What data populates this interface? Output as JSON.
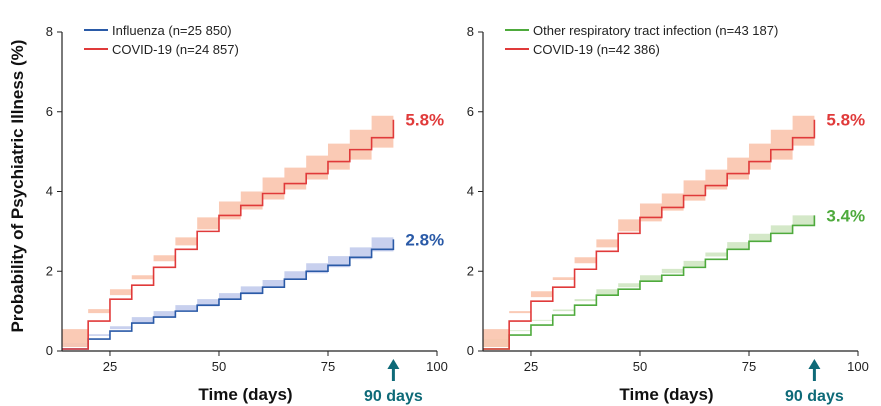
{
  "y_axis_label": "Probability of Psychiatric Illness (%)",
  "colors": {
    "covid": "#e03a3a",
    "covid_band": "#f9c4ad",
    "influenza": "#2a5aa7",
    "influenza_band": "#c2cbec",
    "resp": "#4eaa3c",
    "resp_band": "#cfe6c2",
    "marker": "#0e6a78"
  },
  "chart_data": [
    {
      "type": "line",
      "xlabel": "Time (days)",
      "ylabel": "Probability of Psychiatric Illness (%)",
      "xlim": [
        14,
        100
      ],
      "ylim": [
        0,
        8
      ],
      "x_ticks": [
        25,
        50,
        75,
        100
      ],
      "y_ticks": [
        0,
        2,
        4,
        6,
        8
      ],
      "grid": false,
      "legend": "top-left",
      "marker_label": "90 days",
      "marker_x": 90,
      "series": [
        {
          "name": "Influenza (n=25 850)",
          "color_key": "influenza",
          "end_label": "2.8%",
          "x": [
            14,
            20,
            25,
            30,
            35,
            40,
            45,
            50,
            55,
            60,
            65,
            70,
            75,
            80,
            85,
            90
          ],
          "y": [
            0.05,
            0.3,
            0.5,
            0.7,
            0.85,
            1.0,
            1.15,
            1.3,
            1.45,
            1.6,
            1.8,
            2.0,
            2.15,
            2.35,
            2.55,
            2.8
          ],
          "lower": [
            0.02,
            0.2,
            0.38,
            0.55,
            0.7,
            0.85,
            1.0,
            1.12,
            1.28,
            1.42,
            1.6,
            1.8,
            1.95,
            2.1,
            2.3,
            2.5
          ],
          "upper": [
            0.1,
            0.42,
            0.62,
            0.85,
            1.0,
            1.15,
            1.3,
            1.45,
            1.62,
            1.78,
            2.0,
            2.2,
            2.38,
            2.6,
            2.85,
            3.1
          ]
        },
        {
          "name": "COVID-19 (n=24 857)",
          "color_key": "covid",
          "end_label": "5.8%",
          "x": [
            14,
            20,
            25,
            30,
            35,
            40,
            45,
            50,
            55,
            60,
            65,
            70,
            75,
            80,
            85,
            90
          ],
          "y": [
            0.05,
            0.75,
            1.3,
            1.65,
            2.1,
            2.55,
            3.0,
            3.4,
            3.65,
            3.95,
            4.2,
            4.45,
            4.75,
            5.05,
            5.35,
            5.8
          ],
          "lower": [
            0.02,
            0.55,
            1.05,
            1.4,
            1.8,
            2.25,
            2.65,
            3.05,
            3.3,
            3.55,
            3.8,
            4.05,
            4.3,
            4.55,
            4.8,
            5.1
          ],
          "upper": [
            0.1,
            0.95,
            1.55,
            1.9,
            2.4,
            2.85,
            3.35,
            3.75,
            4.0,
            4.35,
            4.6,
            4.9,
            5.2,
            5.55,
            5.9,
            6.55
          ]
        }
      ]
    },
    {
      "type": "line",
      "xlabel": "Time (days)",
      "ylabel": "",
      "xlim": [
        14,
        100
      ],
      "ylim": [
        0,
        8
      ],
      "x_ticks": [
        25,
        50,
        75,
        100
      ],
      "y_ticks": [
        0,
        2,
        4,
        6,
        8
      ],
      "grid": false,
      "legend": "top-left",
      "marker_label": "90 days",
      "marker_x": 90,
      "series": [
        {
          "name": "Other respiratory tract infection (n=43 187)",
          "color_key": "resp",
          "end_label": "3.4%",
          "x": [
            14,
            20,
            25,
            30,
            35,
            40,
            45,
            50,
            55,
            60,
            65,
            70,
            75,
            80,
            85,
            90
          ],
          "y": [
            0.05,
            0.4,
            0.65,
            0.9,
            1.15,
            1.4,
            1.55,
            1.75,
            1.9,
            2.1,
            2.3,
            2.55,
            2.75,
            2.95,
            3.15,
            3.4
          ],
          "lower": [
            0.02,
            0.3,
            0.52,
            0.76,
            1.0,
            1.25,
            1.4,
            1.6,
            1.75,
            1.95,
            2.13,
            2.37,
            2.56,
            2.75,
            2.95,
            3.15
          ],
          "upper": [
            0.1,
            0.5,
            0.78,
            1.04,
            1.3,
            1.55,
            1.7,
            1.9,
            2.06,
            2.26,
            2.47,
            2.73,
            2.94,
            3.15,
            3.4,
            3.7
          ]
        },
        {
          "name": "COVID-19 (n=42 386)",
          "color_key": "covid",
          "end_label": "5.8%",
          "x": [
            14,
            20,
            25,
            30,
            35,
            40,
            45,
            50,
            55,
            60,
            65,
            70,
            75,
            80,
            85,
            90
          ],
          "y": [
            0.05,
            0.75,
            1.25,
            1.6,
            2.05,
            2.5,
            2.95,
            3.35,
            3.6,
            3.9,
            4.15,
            4.45,
            4.75,
            5.05,
            5.35,
            5.8
          ],
          "lower": [
            0.02,
            0.55,
            1.0,
            1.35,
            1.78,
            2.2,
            2.6,
            3.0,
            3.25,
            3.52,
            3.77,
            4.05,
            4.3,
            4.55,
            4.8,
            5.15
          ],
          "upper": [
            0.1,
            0.95,
            1.5,
            1.85,
            2.35,
            2.8,
            3.3,
            3.7,
            3.95,
            4.28,
            4.55,
            4.85,
            5.2,
            5.55,
            5.9,
            6.45
          ]
        }
      ]
    }
  ]
}
